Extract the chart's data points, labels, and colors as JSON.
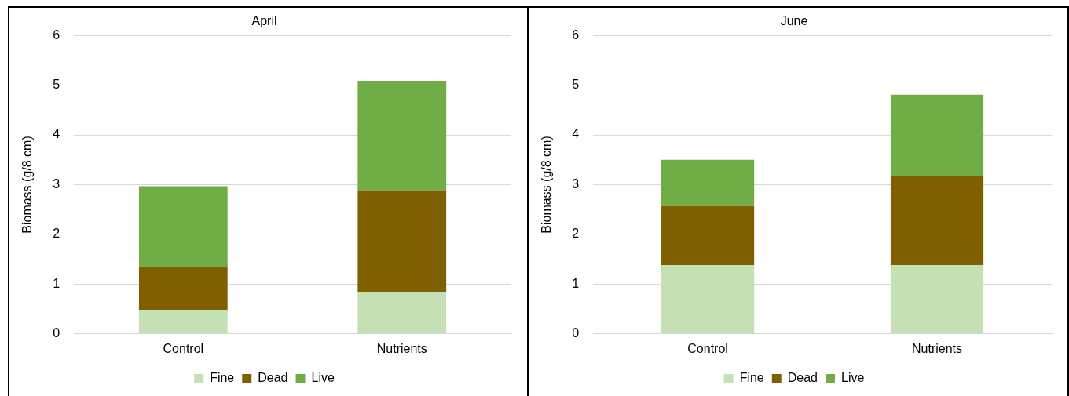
{
  "chart_data": [
    {
      "type": "bar",
      "title": "April",
      "ylabel": "Biomass (g/8 cm)",
      "categories": [
        "Control",
        "Nutrients"
      ],
      "stacked": true,
      "series": [
        {
          "name": "Fine",
          "color": "#c5e0b4",
          "values": [
            0.48,
            0.84
          ]
        },
        {
          "name": "Dead",
          "color": "#7f6000",
          "values": [
            0.86,
            2.05
          ]
        },
        {
          "name": "Live",
          "color": "#70ad47",
          "values": [
            1.63,
            2.2
          ]
        }
      ],
      "ylim": [
        0,
        6
      ],
      "yticks": [
        0,
        1,
        2,
        3,
        4,
        5,
        6
      ],
      "grid": "y",
      "legend": "bottom"
    },
    {
      "type": "bar",
      "title": "June",
      "ylabel": "Biomass (g/8 cm)",
      "categories": [
        "Control",
        "Nutrients"
      ],
      "stacked": true,
      "series": [
        {
          "name": "Fine",
          "color": "#c5e0b4",
          "values": [
            1.38,
            1.38
          ]
        },
        {
          "name": "Dead",
          "color": "#7f6000",
          "values": [
            1.19,
            1.8
          ]
        },
        {
          "name": "Live",
          "color": "#70ad47",
          "values": [
            0.93,
            1.63
          ]
        }
      ],
      "ylim": [
        0,
        6
      ],
      "yticks": [
        0,
        1,
        2,
        3,
        4,
        5,
        6
      ],
      "grid": "y",
      "legend": "bottom"
    }
  ]
}
